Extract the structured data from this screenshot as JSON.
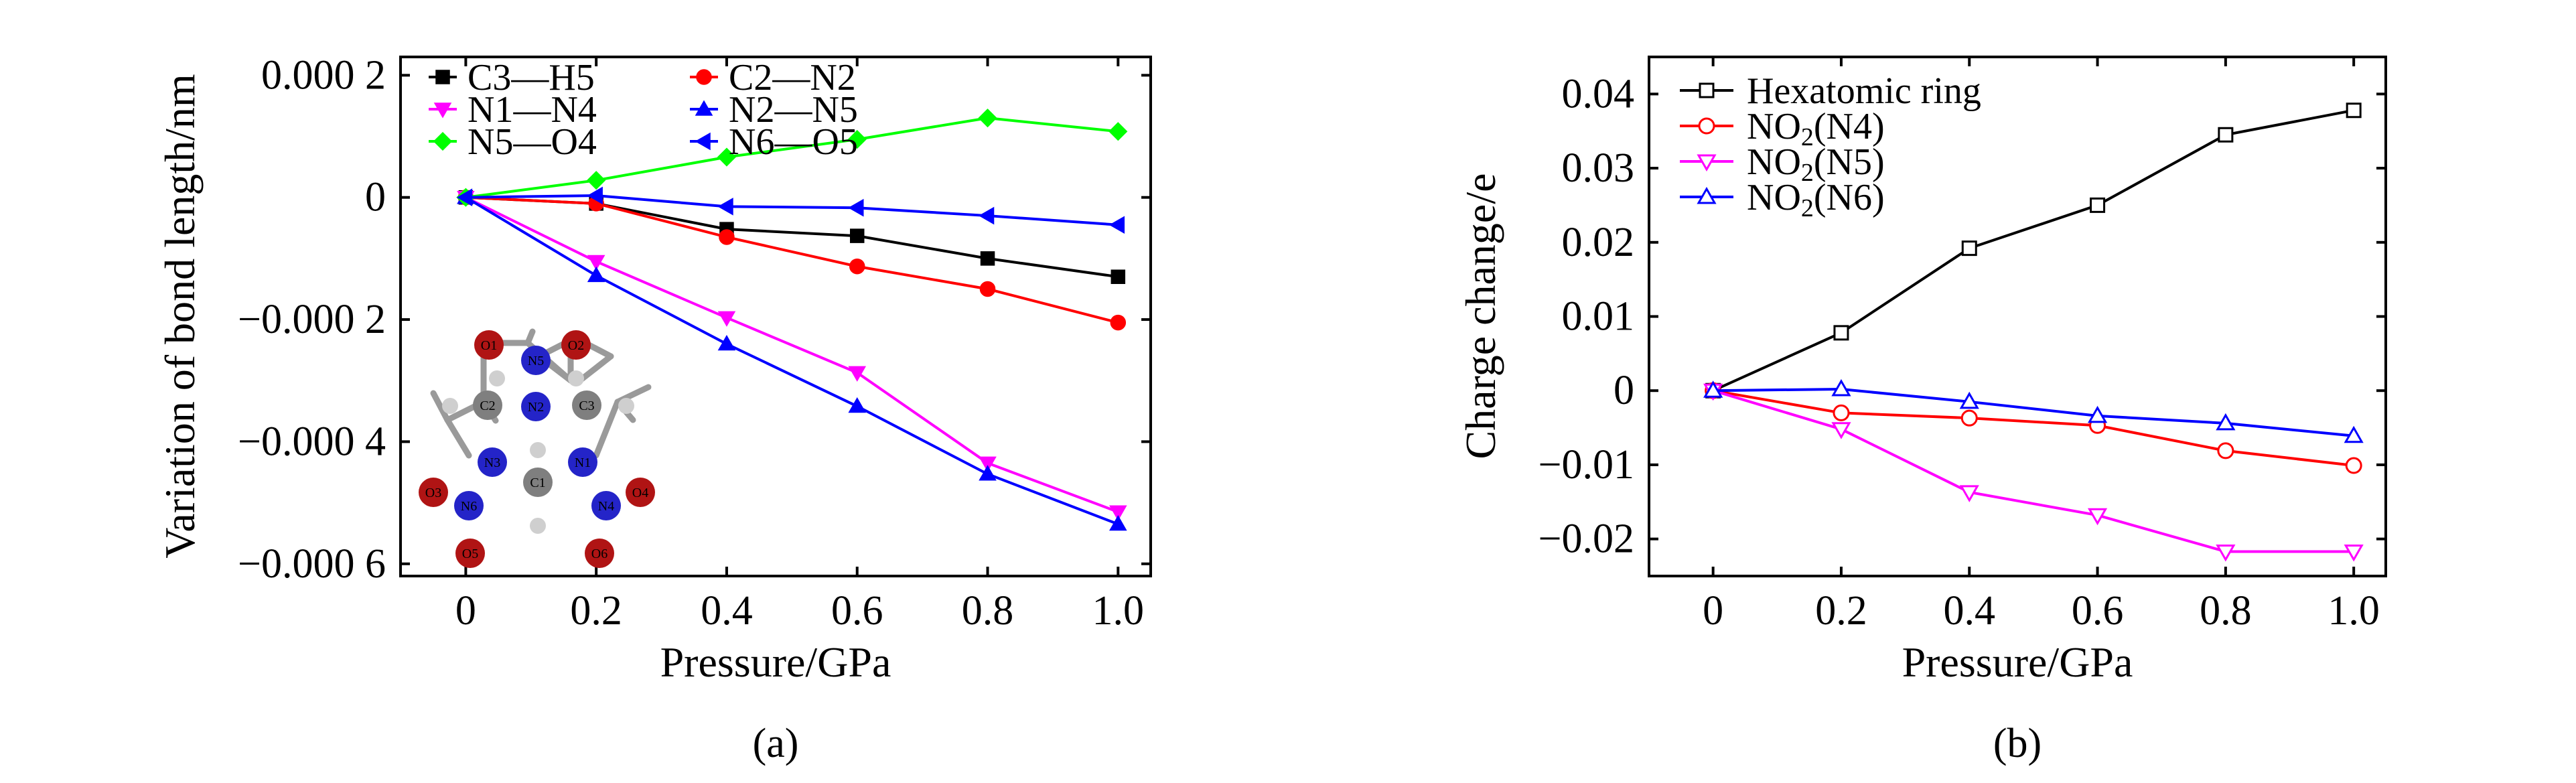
{
  "panels": [
    {
      "id": "a",
      "caption": "(a)",
      "chart_data": {
        "type": "line",
        "xlabel": "Pressure/GPa",
        "ylabel": "Variation of bond length/nm",
        "xlim": [
          -0.1,
          1.05
        ],
        "ylim": [
          -0.00062,
          0.00023
        ],
        "xticks": [
          0,
          0.2,
          0.4,
          0.6,
          0.8,
          1.0
        ],
        "xtick_labels": [
          "0",
          "0.2",
          "0.4",
          "0.6",
          "0.8",
          "1.0"
        ],
        "yticks": [
          0.0002,
          0,
          -0.0002,
          -0.0004,
          -0.0006
        ],
        "ytick_labels": [
          "0.000 2",
          "0",
          "−0.000 2",
          "−0.000 4",
          "−0.000 6"
        ],
        "legend_placement": "top-left",
        "x": [
          0,
          0.2,
          0.4,
          0.6,
          0.8,
          1.0
        ],
        "series": [
          {
            "name": "C3—H5",
            "color": "#000000",
            "marker": "square",
            "values": [
              0,
              -1e-05,
              -5.2e-05,
              -6.3e-05,
              -0.0001,
              -0.00013
            ]
          },
          {
            "name": "C2—N2",
            "color": "#ff0000",
            "marker": "circle",
            "values": [
              0,
              -1e-05,
              -6.5e-05,
              -0.000113,
              -0.00015,
              -0.000205
            ]
          },
          {
            "name": "N1—N4",
            "color": "#ff00ff",
            "marker": "triangle-down",
            "values": [
              0,
              -0.000105,
              -0.000197,
              -0.000287,
              -0.000435,
              -0.000515
            ]
          },
          {
            "name": "N2—N5",
            "color": "#0000ff",
            "marker": "triangle-up",
            "values": [
              0,
              -0.000128,
              -0.00024,
              -0.000342,
              -0.000453,
              -0.000535
            ]
          },
          {
            "name": "N5—O4",
            "color": "#00ff00",
            "marker": "diamond",
            "values": [
              0,
              2.8e-05,
              6.6e-05,
              9.5e-05,
              0.00013,
              0.000108
            ]
          },
          {
            "name": "N6—O5",
            "color": "#0000ff",
            "marker": "triangle-left",
            "values": [
              0,
              3e-06,
              -1.5e-05,
              -1.7e-05,
              -3e-05,
              -4.5e-05
            ]
          }
        ]
      },
      "inset": {
        "description": "molecule",
        "labels": [
          "N5",
          "N2",
          "N3",
          "N1",
          "N6",
          "N4",
          "O1",
          "O2",
          "O3",
          "O4",
          "O5",
          "O6",
          "C1",
          "C2",
          "C3"
        ]
      }
    },
    {
      "id": "b",
      "caption": "(b)",
      "chart_data": {
        "type": "line",
        "xlabel": "Pressure/GPa",
        "ylabel": "Charge change/e",
        "xlim": [
          -0.1,
          1.05
        ],
        "ylim": [
          -0.025,
          0.045
        ],
        "xticks": [
          0,
          0.2,
          0.4,
          0.6,
          0.8,
          1.0
        ],
        "xtick_labels": [
          "0",
          "0.2",
          "0.4",
          "0.6",
          "0.8",
          "1.0"
        ],
        "yticks": [
          0.04,
          0.03,
          0.02,
          0.01,
          0,
          -0.01,
          -0.02
        ],
        "ytick_labels": [
          "0.04",
          "0.03",
          "0.02",
          "0.01",
          "0",
          "−0.01",
          "−0.02"
        ],
        "legend_placement": "top-left",
        "x": [
          0,
          0.2,
          0.4,
          0.6,
          0.8,
          1.0
        ],
        "series": [
          {
            "name": "Hexatomic ring",
            "color": "#000000",
            "marker": "square-open",
            "values": [
              0,
              0.0078,
              0.0192,
              0.025,
              0.0345,
              0.0378
            ]
          },
          {
            "name": "NO2(N4)",
            "color": "#ff0000",
            "marker": "circle-open",
            "values": [
              0,
              -0.003,
              -0.0037,
              -0.0047,
              -0.0081,
              -0.0101
            ]
          },
          {
            "name": "NO2(N5)",
            "color": "#ff00ff",
            "marker": "triangle-down-open",
            "values": [
              0,
              -0.0052,
              -0.0137,
              -0.0168,
              -0.0217,
              -0.0217
            ]
          },
          {
            "name": "NO2(N6)",
            "color": "#0000ff",
            "marker": "triangle-up-open",
            "values": [
              0,
              0.0002,
              -0.0015,
              -0.0034,
              -0.0044,
              -0.0061
            ]
          }
        ]
      }
    }
  ]
}
